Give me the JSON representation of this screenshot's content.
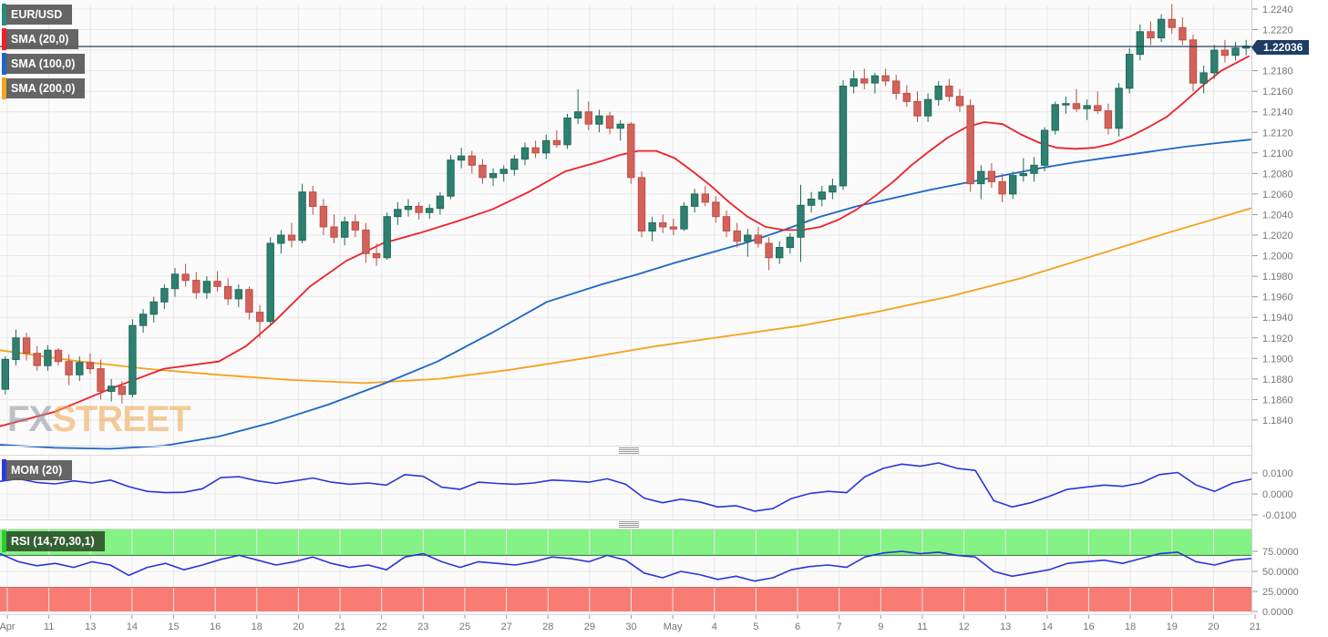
{
  "legend": {
    "symbol": "EUR/USD",
    "sma20_label": "SMA (20,0)",
    "sma100_label": "SMA (100,0)",
    "sma200_label": "SMA (200,0)",
    "mom_label": "MOM (20)",
    "rsi_label": "RSI (14,70,30,1)"
  },
  "price_badge": {
    "text": "1.22036",
    "value": 1.22036
  },
  "watermark": {
    "part1": "FX",
    "part2": "STREET"
  },
  "colors": {
    "bull": "#2e8070",
    "bull_border": "#206a59",
    "bear": "#d2625a",
    "bear_border": "#bd4f47",
    "sma20": "#ef2027",
    "sma100": "#1b66c9",
    "sma200": "#f6a21c",
    "indicator_line": "#2936d8",
    "price_line": "#27415f",
    "symbol_bar": "#2a8a7a",
    "mom_bar": "#2b3ae0",
    "rsi_bar": "#2ecc2e",
    "rsi_zone_high": "#84f284",
    "rsi_zone_low": "#f87c74",
    "rsi_zone_high_border": "#2f7d2f",
    "rsi_zone_low_border": "#cc5a52",
    "grid": "#e8e8e8",
    "tick": "#9a9a9a",
    "panel_border": "#d9d9d9",
    "panel_bg": "#fbfbfb"
  },
  "chart_data": {
    "type": "candlestick",
    "title": "EUR/USD with SMA(20,0), SMA(100,0), SMA(200,0), MOM(20), RSI(14,70,30,1)",
    "last_price": 1.22036,
    "price_axis_ticks": [
      1.224,
      1.222,
      1.22,
      1.218,
      1.216,
      1.214,
      1.212,
      1.21,
      1.208,
      1.206,
      1.204,
      1.202,
      1.2,
      1.198,
      1.196,
      1.194,
      1.192,
      1.19,
      1.188,
      1.186,
      1.184
    ],
    "x_axis_labels": [
      "Apr",
      "11",
      "13",
      "14",
      "15",
      "16",
      "18",
      "20",
      "21",
      "22",
      "23",
      "25",
      "27",
      "28",
      "29",
      "30",
      "May",
      "4",
      "5",
      "6",
      "7",
      "9",
      "11",
      "12",
      "13",
      "14",
      "16",
      "18",
      "19",
      "20",
      "21"
    ],
    "candles_ohlc": [
      [
        1.187,
        1.1902,
        1.1865,
        1.1899
      ],
      [
        1.1899,
        1.1928,
        1.1893,
        1.192
      ],
      [
        1.192,
        1.1925,
        1.1898,
        1.1905
      ],
      [
        1.1905,
        1.1912,
        1.1888,
        1.1893
      ],
      [
        1.1893,
        1.1913,
        1.1888,
        1.1908
      ],
      [
        1.1908,
        1.191,
        1.1893,
        1.1897
      ],
      [
        1.1897,
        1.1904,
        1.1874,
        1.1884
      ],
      [
        1.1884,
        1.1902,
        1.1878,
        1.1896
      ],
      [
        1.1896,
        1.1905,
        1.1885,
        1.189
      ],
      [
        1.189,
        1.1899,
        1.186,
        1.1868
      ],
      [
        1.1868,
        1.188,
        1.1858,
        1.1873
      ],
      [
        1.1873,
        1.1878,
        1.1856,
        1.1865
      ],
      [
        1.1865,
        1.1938,
        1.1862,
        1.1932
      ],
      [
        1.1932,
        1.1948,
        1.1925,
        1.1943
      ],
      [
        1.1943,
        1.196,
        1.1935,
        1.1955
      ],
      [
        1.1955,
        1.1972,
        1.1948,
        1.1968
      ],
      [
        1.1968,
        1.1988,
        1.196,
        1.1982
      ],
      [
        1.1982,
        1.1992,
        1.197,
        1.1976
      ],
      [
        1.1976,
        1.1984,
        1.1958,
        1.1964
      ],
      [
        1.1964,
        1.198,
        1.1958,
        1.1975
      ],
      [
        1.1975,
        1.1985,
        1.1965,
        1.197
      ],
      [
        1.197,
        1.1978,
        1.1952,
        1.1958
      ],
      [
        1.1958,
        1.1972,
        1.195,
        1.1967
      ],
      [
        1.1967,
        1.197,
        1.1938,
        1.1945
      ],
      [
        1.1945,
        1.1952,
        1.192,
        1.1936
      ],
      [
        1.1936,
        1.2018,
        1.1932,
        1.2012
      ],
      [
        1.2012,
        1.2025,
        1.2002,
        1.202
      ],
      [
        1.202,
        1.2032,
        1.2008,
        1.2015
      ],
      [
        1.2015,
        1.207,
        1.2012,
        1.2062
      ],
      [
        1.2062,
        1.2068,
        1.204,
        1.2048
      ],
      [
        1.2048,
        1.2055,
        1.202,
        1.2028
      ],
      [
        1.2028,
        1.204,
        1.2012,
        1.2018
      ],
      [
        1.2018,
        1.2038,
        1.201,
        1.2033
      ],
      [
        1.2033,
        1.204,
        1.2018,
        1.2025
      ],
      [
        1.2025,
        1.2032,
        1.1993,
        1.2002
      ],
      [
        1.2002,
        1.2012,
        1.199,
        1.1998
      ],
      [
        1.1998,
        1.2042,
        1.1996,
        1.2038
      ],
      [
        1.2038,
        1.2052,
        1.203,
        1.2045
      ],
      [
        1.2045,
        1.2055,
        1.2038,
        1.2048
      ],
      [
        1.2048,
        1.2052,
        1.2035,
        1.2042
      ],
      [
        1.2042,
        1.205,
        1.2036,
        1.2046
      ],
      [
        1.2046,
        1.2062,
        1.204,
        1.2058
      ],
      [
        1.2058,
        1.2098,
        1.2055,
        1.2093
      ],
      [
        1.2093,
        1.2105,
        1.2085,
        1.2097
      ],
      [
        1.2097,
        1.2102,
        1.208,
        1.2088
      ],
      [
        1.2088,
        1.2094,
        1.207,
        1.2076
      ],
      [
        1.2076,
        1.2085,
        1.2068,
        1.208
      ],
      [
        1.208,
        1.2088,
        1.2072,
        1.2084
      ],
      [
        1.2084,
        1.2098,
        1.2078,
        1.2094
      ],
      [
        1.2094,
        1.211,
        1.2088,
        1.2105
      ],
      [
        1.2105,
        1.2112,
        1.2095,
        1.21
      ],
      [
        1.21,
        1.2118,
        1.2094,
        1.2112
      ],
      [
        1.2112,
        1.2122,
        1.2105,
        1.2108
      ],
      [
        1.2108,
        1.2138,
        1.2104,
        1.2134
      ],
      [
        1.2134,
        1.2162,
        1.2128,
        1.214
      ],
      [
        1.214,
        1.215,
        1.2122,
        1.2128
      ],
      [
        1.2128,
        1.2142,
        1.212,
        1.2136
      ],
      [
        1.2136,
        1.214,
        1.2118,
        1.2124
      ],
      [
        1.2124,
        1.2132,
        1.2112,
        1.2128
      ],
      [
        1.2128,
        1.213,
        1.207,
        1.2076
      ],
      [
        1.2076,
        1.2082,
        1.2018,
        1.2024
      ],
      [
        1.2024,
        1.2038,
        1.2014,
        1.2032
      ],
      [
        1.2032,
        1.204,
        1.2022,
        1.2028
      ],
      [
        1.2028,
        1.2036,
        1.202,
        1.2026
      ],
      [
        1.2026,
        1.2052,
        1.2024,
        1.2048
      ],
      [
        1.2048,
        1.2065,
        1.2042,
        1.206
      ],
      [
        1.206,
        1.2068,
        1.2048,
        1.2052
      ],
      [
        1.2052,
        1.2058,
        1.2032,
        1.2038
      ],
      [
        1.2038,
        1.2044,
        1.2018,
        1.2024
      ],
      [
        1.2024,
        1.2032,
        1.2008,
        1.2014
      ],
      [
        1.2014,
        1.2026,
        1.1999,
        1.202
      ],
      [
        1.202,
        1.2028,
        1.2008,
        1.2012
      ],
      [
        1.2012,
        1.2018,
        1.1986,
        1.1998
      ],
      [
        1.1998,
        1.2014,
        1.1992,
        1.2008
      ],
      [
        1.2008,
        1.2022,
        1.2002,
        1.2018
      ],
      [
        1.2018,
        1.2069,
        1.1994,
        1.2049
      ],
      [
        1.2049,
        1.2062,
        1.2042,
        1.2055
      ],
      [
        1.2055,
        1.2068,
        1.2048,
        1.2062
      ],
      [
        1.2062,
        1.2075,
        1.2055,
        1.2068
      ],
      [
        1.2068,
        1.2171,
        1.2064,
        1.2165
      ],
      [
        1.2165,
        1.218,
        1.2158,
        1.2172
      ],
      [
        1.2172,
        1.2182,
        1.2162,
        1.2168
      ],
      [
        1.2168,
        1.2178,
        1.2158,
        1.2175
      ],
      [
        1.2175,
        1.2182,
        1.2165,
        1.217
      ],
      [
        1.217,
        1.2176,
        1.2152,
        1.2158
      ],
      [
        1.2158,
        1.2166,
        1.2145,
        1.215
      ],
      [
        1.215,
        1.216,
        1.213,
        1.2136
      ],
      [
        1.2136,
        1.2158,
        1.213,
        1.2152
      ],
      [
        1.2152,
        1.217,
        1.2146,
        1.2165
      ],
      [
        1.2165,
        1.2172,
        1.215,
        1.2155
      ],
      [
        1.2155,
        1.2162,
        1.214,
        1.2146
      ],
      [
        1.2146,
        1.2152,
        1.2062,
        1.207
      ],
      [
        1.207,
        1.2088,
        1.2055,
        1.2082
      ],
      [
        1.2082,
        1.209,
        1.2066,
        1.2072
      ],
      [
        1.2072,
        1.208,
        1.2052,
        1.206
      ],
      [
        1.206,
        1.2082,
        1.2055,
        1.2078
      ],
      [
        1.2078,
        1.2095,
        1.2072,
        1.208
      ],
      [
        1.208,
        1.2096,
        1.2072,
        1.2088
      ],
      [
        1.2088,
        1.2125,
        1.2082,
        1.2122
      ],
      [
        1.2122,
        1.215,
        1.2118,
        1.2147
      ],
      [
        1.2147,
        1.2155,
        1.2138,
        1.2148
      ],
      [
        1.2148,
        1.2162,
        1.214,
        1.2143
      ],
      [
        1.2143,
        1.2152,
        1.2132,
        1.2146
      ],
      [
        1.2146,
        1.216,
        1.2138,
        1.2141
      ],
      [
        1.2141,
        1.2148,
        1.2118,
        1.2124
      ],
      [
        1.2124,
        1.2168,
        1.2116,
        1.2163
      ],
      [
        1.2163,
        1.2202,
        1.2158,
        1.2196
      ],
      [
        1.2196,
        1.2225,
        1.219,
        1.2218
      ],
      [
        1.2218,
        1.2228,
        1.2205,
        1.2212
      ],
      [
        1.2212,
        1.2235,
        1.2208,
        1.223
      ],
      [
        1.223,
        1.2245,
        1.2216,
        1.2222
      ],
      [
        1.2222,
        1.2232,
        1.2205,
        1.221
      ],
      [
        1.221,
        1.2215,
        1.216,
        1.2168
      ],
      [
        1.2168,
        1.2185,
        1.2158,
        1.2178
      ],
      [
        1.2178,
        1.2205,
        1.2172,
        1.22
      ],
      [
        1.22,
        1.221,
        1.2188,
        1.2195
      ],
      [
        1.2195,
        1.2208,
        1.219,
        1.2202
      ],
      [
        1.2202,
        1.221,
        1.2195,
        1.2204
      ]
    ],
    "sma20_points": [
      [
        0,
        1.1834
      ],
      [
        60,
        1.1848
      ],
      [
        120,
        1.187
      ],
      [
        180,
        1.189
      ],
      [
        240,
        1.1897
      ],
      [
        270,
        1.1912
      ],
      [
        300,
        1.1935
      ],
      [
        340,
        1.197
      ],
      [
        380,
        1.1995
      ],
      [
        420,
        1.2012
      ],
      [
        460,
        1.2022
      ],
      [
        500,
        1.2033
      ],
      [
        540,
        1.2045
      ],
      [
        580,
        1.2062
      ],
      [
        620,
        1.2082
      ],
      [
        660,
        1.2092
      ],
      [
        680,
        1.2098
      ],
      [
        700,
        1.2102
      ],
      [
        720,
        1.2102
      ],
      [
        740,
        1.2095
      ],
      [
        760,
        1.2082
      ],
      [
        780,
        1.2068
      ],
      [
        800,
        1.2052
      ],
      [
        820,
        1.2038
      ],
      [
        840,
        1.2028
      ],
      [
        860,
        1.2025
      ],
      [
        880,
        1.2025
      ],
      [
        900,
        1.2028
      ],
      [
        920,
        1.2035
      ],
      [
        940,
        1.2045
      ],
      [
        960,
        1.2058
      ],
      [
        980,
        1.2072
      ],
      [
        1000,
        1.2088
      ],
      [
        1020,
        1.2102
      ],
      [
        1040,
        1.2115
      ],
      [
        1060,
        1.2125
      ],
      [
        1080,
        1.213
      ],
      [
        1100,
        1.2128
      ],
      [
        1120,
        1.2118
      ],
      [
        1140,
        1.211
      ],
      [
        1160,
        1.2105
      ],
      [
        1180,
        1.2104
      ],
      [
        1200,
        1.2105
      ],
      [
        1220,
        1.2109
      ],
      [
        1240,
        1.2116
      ],
      [
        1260,
        1.2125
      ],
      [
        1280,
        1.2135
      ],
      [
        1300,
        1.215
      ],
      [
        1320,
        1.2166
      ],
      [
        1340,
        1.218
      ],
      [
        1370,
        1.2194
      ]
    ],
    "sma100_points": [
      [
        0,
        1.1816
      ],
      [
        60,
        1.1813
      ],
      [
        120,
        1.1812
      ],
      [
        180,
        1.1815
      ],
      [
        240,
        1.1824
      ],
      [
        300,
        1.1838
      ],
      [
        360,
        1.1855
      ],
      [
        420,
        1.1875
      ],
      [
        480,
        1.1897
      ],
      [
        540,
        1.1925
      ],
      [
        600,
        1.1955
      ],
      [
        660,
        1.1972
      ],
      [
        700,
        1.1982
      ],
      [
        740,
        1.1993
      ],
      [
        780,
        1.2003
      ],
      [
        820,
        1.2013
      ],
      [
        860,
        1.2025
      ],
      [
        900,
        1.2038
      ],
      [
        940,
        1.2048
      ],
      [
        980,
        1.2056
      ],
      [
        1020,
        1.2064
      ],
      [
        1060,
        1.2071
      ],
      [
        1100,
        1.2078
      ],
      [
        1140,
        1.2085
      ],
      [
        1180,
        1.2091
      ],
      [
        1220,
        1.2096
      ],
      [
        1260,
        1.2101
      ],
      [
        1300,
        1.2106
      ],
      [
        1340,
        1.211
      ],
      [
        1372,
        1.2113
      ]
    ],
    "sma200_points": [
      [
        0,
        1.1908
      ],
      [
        80,
        1.1898
      ],
      [
        160,
        1.189
      ],
      [
        240,
        1.1884
      ],
      [
        320,
        1.1879
      ],
      [
        400,
        1.1876
      ],
      [
        480,
        1.188
      ],
      [
        560,
        1.1889
      ],
      [
        640,
        1.19
      ],
      [
        720,
        1.1912
      ],
      [
        800,
        1.1922
      ],
      [
        880,
        1.1932
      ],
      [
        960,
        1.1945
      ],
      [
        1040,
        1.196
      ],
      [
        1120,
        1.1978
      ],
      [
        1200,
        1.2
      ],
      [
        1280,
        1.2022
      ],
      [
        1372,
        1.2046
      ]
    ],
    "mom": {
      "label": "MOM (20)",
      "axis_ticks": [
        0.01,
        0.0,
        -0.01
      ],
      "values": [
        0.006,
        0.0072,
        0.0055,
        0.0048,
        0.0062,
        0.0052,
        0.0066,
        0.0035,
        0.0012,
        0.0006,
        0.0008,
        0.0025,
        0.0078,
        0.0082,
        0.0062,
        0.005,
        0.0062,
        0.0076,
        0.0056,
        0.0046,
        0.0052,
        0.0042,
        0.0092,
        0.0084,
        0.0032,
        0.0022,
        0.0056,
        0.005,
        0.0046,
        0.0052,
        0.0066,
        0.0062,
        0.0056,
        0.0072,
        0.0046,
        -0.002,
        -0.0042,
        -0.0025,
        -0.0038,
        -0.0062,
        -0.0056,
        -0.0082,
        -0.007,
        -0.0022,
        0.0002,
        0.0012,
        0.0006,
        0.0082,
        0.0122,
        0.0142,
        0.0132,
        0.0148,
        0.0122,
        0.0112,
        -0.0032,
        -0.0062,
        -0.0042,
        -0.0012,
        0.0022,
        0.0032,
        0.0042,
        0.0036,
        0.0052,
        0.0092,
        0.0102,
        0.0042,
        0.0012,
        0.0052,
        0.007
      ]
    },
    "rsi": {
      "label": "RSI (14,70,30,1)",
      "axis_ticks": [
        75,
        50,
        25,
        0
      ],
      "upper_band": 70,
      "lower_band": 30,
      "values": [
        72,
        62,
        57,
        60,
        55,
        62,
        58,
        45,
        55,
        60,
        52,
        58,
        65,
        70,
        64,
        58,
        62,
        68,
        60,
        55,
        58,
        52,
        68,
        72,
        62,
        55,
        62,
        60,
        58,
        62,
        68,
        66,
        62,
        70,
        64,
        48,
        42,
        50,
        46,
        40,
        44,
        38,
        42,
        52,
        56,
        58,
        55,
        68,
        73,
        75,
        72,
        74,
        70,
        68,
        50,
        44,
        48,
        52,
        60,
        62,
        64,
        60,
        66,
        72,
        74,
        62,
        58,
        64,
        66
      ]
    }
  }
}
